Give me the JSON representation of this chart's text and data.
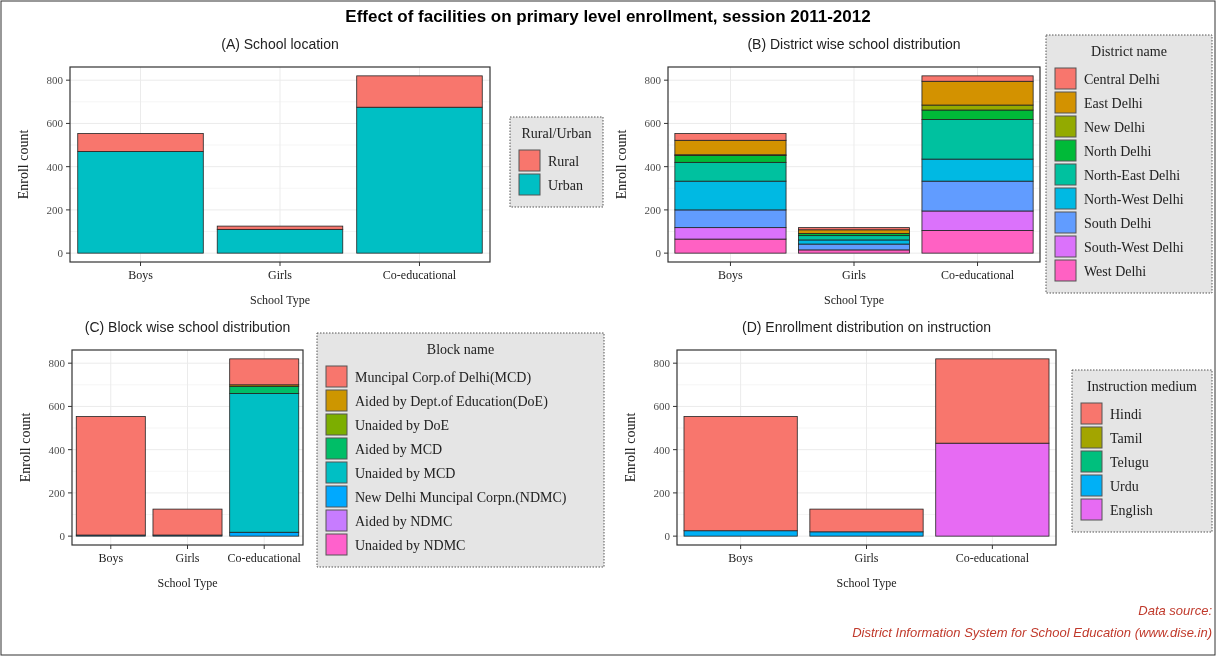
{
  "chart_data": [
    {
      "type": "bar",
      "stacked": true,
      "title": "(A) School location",
      "xlabel": "School Type",
      "ylabel": "Enroll count",
      "legend_title": "Rural/Urban",
      "legend": "right",
      "grid": true,
      "categories": [
        "Boys",
        "Girls",
        "Co-educational"
      ],
      "ylim": [
        -41,
        861
      ],
      "yticks": [
        0,
        200,
        400,
        600,
        800
      ],
      "annotations": [
        "Effect of facilities on primary level enrollment, session 2011-2012"
      ],
      "series": [
        {
          "name": "Urban",
          "color": "#00bfc4",
          "values": [
            470,
            110,
            675
          ]
        },
        {
          "name": "Rural",
          "color": "#f8766d",
          "values": [
            83,
            15,
            145
          ]
        }
      ]
    },
    {
      "type": "bar",
      "stacked": true,
      "title": "(B) District wise school distribution",
      "xlabel": "School Type",
      "ylabel": "Enroll count",
      "legend_title": "District name",
      "legend": "right",
      "grid": true,
      "categories": [
        "Boys",
        "Girls",
        "Co-educational"
      ],
      "ylim": [
        -41,
        861
      ],
      "yticks": [
        0,
        200,
        400,
        600,
        800
      ],
      "series": [
        {
          "name": "West Delhi",
          "color": "#ff61c3",
          "values": [
            65,
            15,
            105
          ]
        },
        {
          "name": "South-West Delhi",
          "color": "#db72fb",
          "values": [
            53,
            null,
            90
          ]
        },
        {
          "name": "South Delhi",
          "color": "#619cff",
          "values": [
            82,
            27,
            138
          ]
        },
        {
          "name": "North-West Delhi",
          "color": "#00b9e3",
          "values": [
            133,
            19,
            102
          ]
        },
        {
          "name": "North-East Delhi",
          "color": "#00c19f",
          "values": [
            87,
            20,
            183
          ]
        },
        {
          "name": "North Delhi",
          "color": "#00ba38",
          "values": [
            32,
            10,
            44
          ]
        },
        {
          "name": "New Delhi",
          "color": "#93aa00",
          "values": [
            3,
            null,
            23
          ]
        },
        {
          "name": "East Delhi",
          "color": "#d39200",
          "values": [
            67,
            17,
            110
          ]
        },
        {
          "name": "Central Delhi",
          "color": "#f8766d",
          "values": [
            31,
            10,
            25
          ]
        }
      ]
    },
    {
      "type": "bar",
      "stacked": true,
      "title": "(C) Block wise school distribution",
      "xlabel": "School Type",
      "ylabel": "Enroll count",
      "legend_title": "Block name",
      "legend": "right",
      "grid": true,
      "categories": [
        "Boys",
        "Girls",
        "Co-educational"
      ],
      "ylim": [
        -41,
        861
      ],
      "yticks": [
        0,
        200,
        400,
        600,
        800
      ],
      "series": [
        {
          "name": "Unaided by NDMC",
          "color": "#ff61cc",
          "values": [
            0,
            0,
            0
          ]
        },
        {
          "name": "Aided by NDMC",
          "color": "#c77cff",
          "values": [
            0,
            0,
            0
          ]
        },
        {
          "name": "New Delhi Muncipal Corpn.(NDMC)",
          "color": "#00a9ff",
          "values": [
            5,
            5,
            18
          ]
        },
        {
          "name": "Unaided by MCD",
          "color": "#00bfc4",
          "values": [
            0,
            0,
            642
          ]
        },
        {
          "name": "Aided by MCD",
          "color": "#00be67",
          "values": [
            0,
            0,
            33
          ]
        },
        {
          "name": "Unaided by DoE",
          "color": "#7cae00",
          "values": [
            0,
            0,
            0
          ]
        },
        {
          "name": "Aided by Dept.of Education(DoE)",
          "color": "#cd9600",
          "values": [
            0,
            0,
            7
          ]
        },
        {
          "name": "Muncipal Corp.of Delhi(MCD)",
          "color": "#f8766d",
          "values": [
            548,
            120,
            120
          ]
        }
      ]
    },
    {
      "type": "bar",
      "stacked": true,
      "title": "(D) Enrollment distribution on instruction",
      "xlabel": "School Type",
      "ylabel": "Enroll count",
      "legend_title": "Instruction medium",
      "legend": "right",
      "grid": true,
      "categories": [
        "Boys",
        "Girls",
        "Co-educational"
      ],
      "ylim": [
        -41,
        861
      ],
      "yticks": [
        0,
        200,
        400,
        600,
        800
      ],
      "annotations": [
        "Data source:",
        "District Information System for School Education (www.dise.in)"
      ],
      "series": [
        {
          "name": "English",
          "color": "#e76bf3",
          "values": [
            0,
            0,
            430
          ]
        },
        {
          "name": "Urdu",
          "color": "#00b0f6",
          "values": [
            25,
            20,
            0
          ]
        },
        {
          "name": "Telugu",
          "color": "#00bf7d",
          "values": [
            0,
            0,
            0
          ]
        },
        {
          "name": "Tamil",
          "color": "#a3a500",
          "values": [
            0,
            0,
            0
          ]
        },
        {
          "name": "Hindi",
          "color": "#f8766d",
          "values": [
            528,
            105,
            390
          ]
        }
      ]
    }
  ]
}
